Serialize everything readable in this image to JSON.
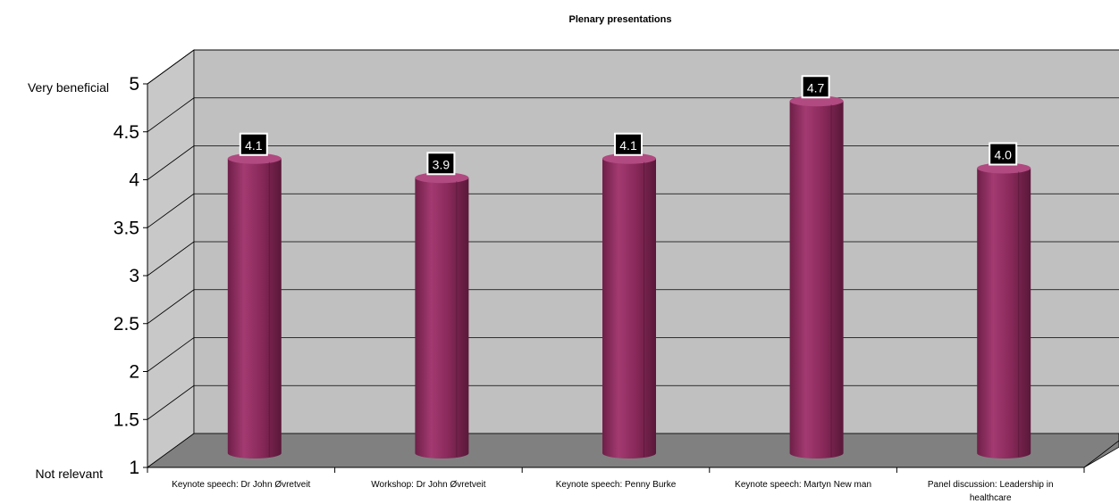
{
  "chart_data": {
    "type": "bar",
    "title": "Plenary presentations",
    "categories": [
      [
        "Keynote speech: Dr John Øvretveit"
      ],
      [
        "Workshop: Dr John Øvretveit"
      ],
      [
        "Keynote speech: Penny Burke"
      ],
      [
        "Keynote speech: Martyn New man"
      ],
      [
        "Panel discussion: Leadership in",
        "healthcare"
      ]
    ],
    "values": [
      4.1,
      3.9,
      4.1,
      4.7,
      4.0
    ],
    "data_labels": [
      "4.1",
      "3.9",
      "4.1",
      "4.7",
      "4.0"
    ],
    "ylim": [
      1,
      5
    ],
    "yticks": [
      "1",
      "1.5",
      "2",
      "2.5",
      "3",
      "3.5",
      "4",
      "4.5",
      "5"
    ],
    "y_annotations": {
      "top": "Very beneficial",
      "bottom": "Not relevant"
    },
    "grid": true,
    "bar_shape": "cylinder",
    "colors": {
      "bar": "#8b2a5c",
      "back_wall": "#c0c0c0",
      "side_wall": "#c8c8c8",
      "floor": "#808080",
      "label_bg": "#000000",
      "label_text": "#ffffff"
    }
  }
}
